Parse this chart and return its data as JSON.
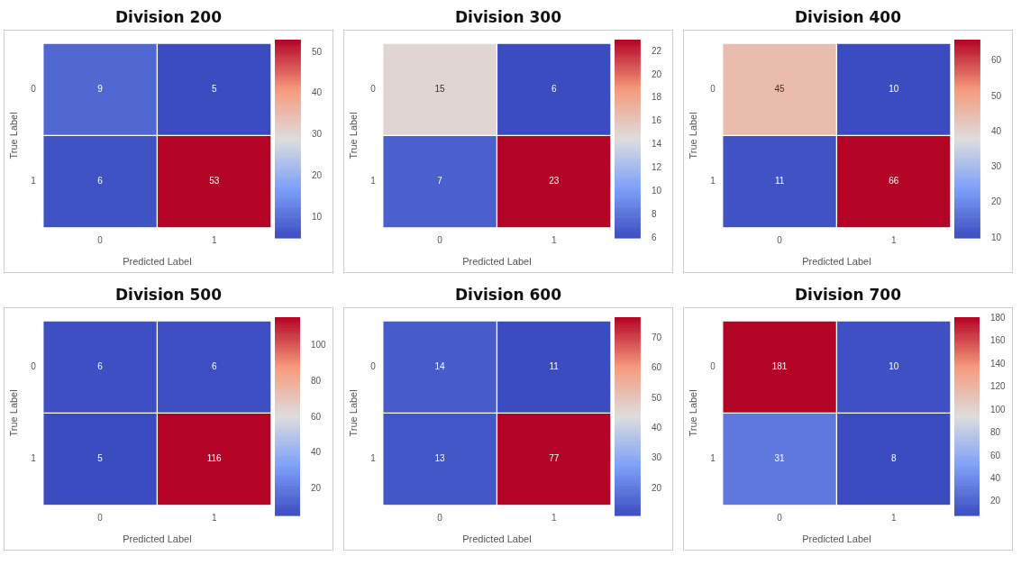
{
  "chart_data": [
    {
      "type": "heatmap",
      "title": "Division 200",
      "xlabel": "Predicted Label",
      "ylabel": "True Label",
      "categories": [
        "0",
        "1"
      ],
      "y_categories": [
        "0",
        "1"
      ],
      "cells": [
        [
          9,
          5
        ],
        [
          6,
          53
        ]
      ],
      "clim": [
        5,
        53
      ],
      "cticks": [
        10,
        20,
        30,
        40,
        50
      ],
      "data_labels": true
    },
    {
      "type": "heatmap",
      "title": "Division 300",
      "xlabel": "Predicted Label",
      "ylabel": "True Label",
      "categories": [
        "0",
        "1"
      ],
      "y_categories": [
        "0",
        "1"
      ],
      "cells": [
        [
          15,
          6
        ],
        [
          7,
          23
        ]
      ],
      "clim": [
        6,
        23
      ],
      "cticks": [
        6,
        8,
        10,
        12,
        14,
        16,
        18,
        20,
        22
      ],
      "data_labels": true
    },
    {
      "type": "heatmap",
      "title": "Division 400",
      "xlabel": "Predicted Label",
      "ylabel": "True Label",
      "categories": [
        "0",
        "1"
      ],
      "y_categories": [
        "0",
        "1"
      ],
      "cells": [
        [
          45,
          10
        ],
        [
          11,
          66
        ]
      ],
      "clim": [
        10,
        66
      ],
      "cticks": [
        10,
        20,
        30,
        40,
        50,
        60
      ],
      "data_labels": true
    },
    {
      "type": "heatmap",
      "title": "Division 500",
      "xlabel": "Predicted Label",
      "ylabel": "True Label",
      "categories": [
        "0",
        "1"
      ],
      "y_categories": [
        "0",
        "1"
      ],
      "cells": [
        [
          6,
          6
        ],
        [
          5,
          116
        ]
      ],
      "clim": [
        5,
        116
      ],
      "cticks": [
        20,
        40,
        60,
        80,
        100
      ],
      "data_labels": true
    },
    {
      "type": "heatmap",
      "title": "Division 600",
      "xlabel": "Predicted Label",
      "ylabel": "True Label",
      "categories": [
        "0",
        "1"
      ],
      "y_categories": [
        "0",
        "1"
      ],
      "cells": [
        [
          14,
          11
        ],
        [
          13,
          77
        ]
      ],
      "clim": [
        11,
        77
      ],
      "cticks": [
        20,
        30,
        40,
        50,
        60,
        70
      ],
      "data_labels": true
    },
    {
      "type": "heatmap",
      "title": "Division 700",
      "xlabel": "Predicted Label",
      "ylabel": "True Label",
      "categories": [
        "0",
        "1"
      ],
      "y_categories": [
        "0",
        "1"
      ],
      "cells": [
        [
          181,
          10
        ],
        [
          31,
          8
        ]
      ],
      "clim": [
        8,
        181
      ],
      "cticks": [
        20,
        40,
        60,
        80,
        100,
        120,
        140,
        160,
        180
      ],
      "data_labels": true
    }
  ]
}
